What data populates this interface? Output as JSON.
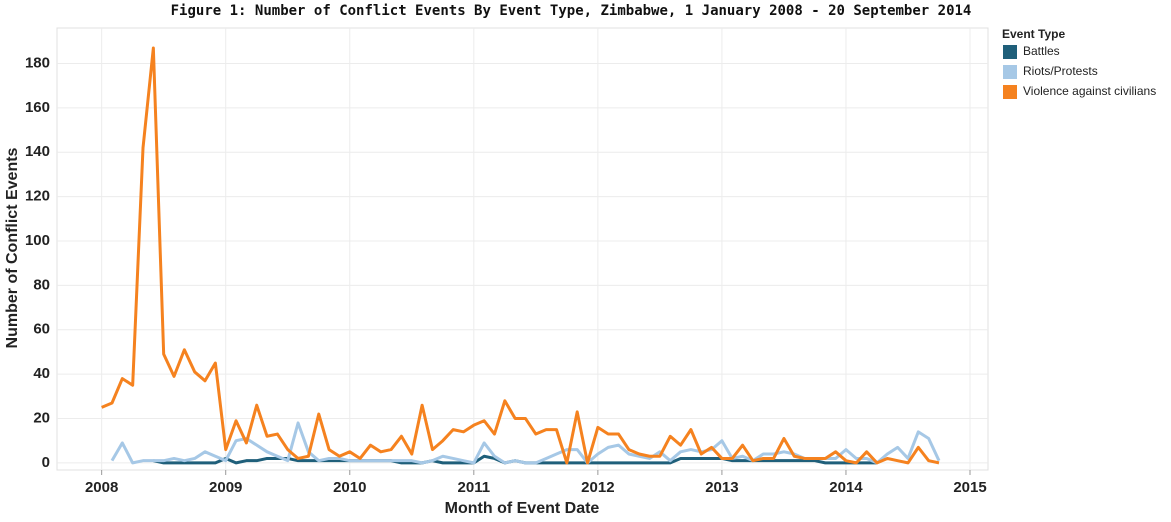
{
  "chart_data": {
    "type": "line",
    "title": "Figure 1: Number of Conflict Events By Event Type, Zimbabwe, 1 January 2008 - 20 September 2014",
    "x_label": "Month of Event Date",
    "y_label": "Number of Conflict Events",
    "legend_title": "Event Type",
    "legend_position": "right",
    "grid": true,
    "x": [
      "2008-01",
      "2008-02",
      "2008-03",
      "2008-04",
      "2008-05",
      "2008-06",
      "2008-07",
      "2008-08",
      "2008-09",
      "2008-10",
      "2008-11",
      "2008-12",
      "2009-01",
      "2009-02",
      "2009-03",
      "2009-04",
      "2009-05",
      "2009-06",
      "2009-07",
      "2009-08",
      "2009-09",
      "2009-10",
      "2009-11",
      "2009-12",
      "2010-01",
      "2010-02",
      "2010-03",
      "2010-04",
      "2010-05",
      "2010-06",
      "2010-07",
      "2010-08",
      "2010-09",
      "2010-10",
      "2010-11",
      "2010-12",
      "2011-01",
      "2011-02",
      "2011-03",
      "2011-04",
      "2011-05",
      "2011-06",
      "2011-07",
      "2011-08",
      "2011-09",
      "2011-10",
      "2011-11",
      "2011-12",
      "2012-01",
      "2012-02",
      "2012-03",
      "2012-04",
      "2012-05",
      "2012-06",
      "2012-07",
      "2012-08",
      "2012-09",
      "2012-10",
      "2012-11",
      "2012-12",
      "2013-01",
      "2013-02",
      "2013-03",
      "2013-04",
      "2013-05",
      "2013-06",
      "2013-07",
      "2013-08",
      "2013-09",
      "2013-10",
      "2013-11",
      "2013-12",
      "2014-01",
      "2014-02",
      "2014-03",
      "2014-04",
      "2014-05",
      "2014-06",
      "2014-07",
      "2014-08",
      "2014-09",
      "2014-10"
    ],
    "series": [
      {
        "name": "Battles",
        "color": "#1f5f7a",
        "values": [
          null,
          null,
          null,
          null,
          null,
          1,
          0,
          0,
          0,
          0,
          0,
          0,
          2,
          0,
          1,
          1,
          2,
          2,
          2,
          1,
          1,
          1,
          1,
          1,
          1,
          1,
          1,
          1,
          1,
          0,
          0,
          0,
          1,
          0,
          0,
          0,
          0,
          3,
          2,
          0,
          1,
          0,
          0,
          0,
          0,
          0,
          0,
          0,
          0,
          0,
          0,
          0,
          0,
          0,
          0,
          0,
          2,
          2,
          2,
          2,
          2,
          1,
          1,
          1,
          1,
          1,
          1,
          1,
          1,
          1,
          0,
          0,
          0,
          0,
          0,
          0,
          null,
          null,
          null,
          null,
          null,
          null
        ]
      },
      {
        "name": "Riots/Protests",
        "color": "#a6c8e6",
        "values": [
          null,
          1,
          9,
          0,
          1,
          1,
          1,
          2,
          1,
          2,
          5,
          3,
          1,
          10,
          11,
          8,
          5,
          3,
          1,
          18,
          5,
          1,
          2,
          2,
          1,
          1,
          1,
          1,
          1,
          1,
          1,
          0,
          1,
          3,
          2,
          1,
          0,
          9,
          3,
          0,
          1,
          0,
          0,
          2,
          4,
          6,
          6,
          0,
          4,
          7,
          8,
          4,
          3,
          2,
          5,
          1,
          5,
          6,
          5,
          6,
          10,
          2,
          3,
          1,
          4,
          4,
          5,
          4,
          2,
          2,
          2,
          2,
          6,
          2,
          2,
          0,
          4,
          7,
          2,
          14,
          11,
          1
        ]
      },
      {
        "name": "Violence against civilians",
        "color": "#f5821f",
        "values": [
          25,
          27,
          38,
          35,
          142,
          187,
          49,
          39,
          51,
          41,
          37,
          45,
          6,
          19,
          9,
          26,
          12,
          13,
          6,
          2,
          3,
          22,
          6,
          3,
          5,
          2,
          8,
          5,
          6,
          12,
          4,
          26,
          6,
          10,
          15,
          14,
          17,
          19,
          13,
          28,
          20,
          20,
          13,
          15,
          15,
          0,
          23,
          0,
          16,
          13,
          13,
          6,
          4,
          3,
          3,
          12,
          8,
          15,
          4,
          7,
          2,
          2,
          8,
          1,
          2,
          2,
          11,
          3,
          2,
          2,
          2,
          5,
          1,
          0,
          5,
          0,
          2,
          1,
          0,
          7,
          1,
          0
        ]
      }
    ],
    "xlim": [
      2007.64,
      2015.145
    ],
    "xticks": [
      2008,
      2009,
      2010,
      2011,
      2012,
      2013,
      2014,
      2015
    ],
    "ylim": [
      -3.2,
      196
    ],
    "yticks": [
      0,
      20,
      40,
      60,
      80,
      100,
      120,
      140,
      160,
      180
    ]
  }
}
